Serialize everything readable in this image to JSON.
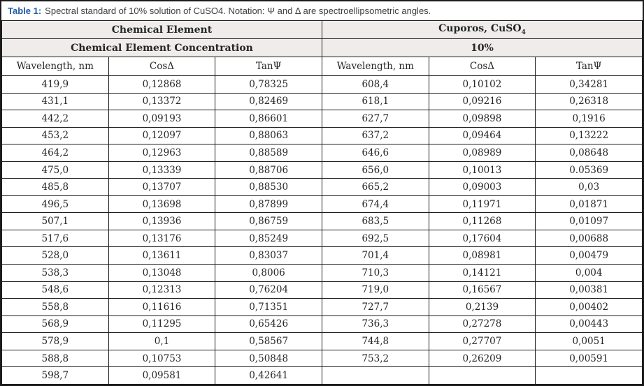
{
  "caption": {
    "label": "Table 1:",
    "text": "Spectral standard of 10% solution of CuSO4. Notation: Ψ and Δ are spectroellipsometric angles."
  },
  "table": {
    "group_left": "Chemical Element",
    "group_right_prefix": "Cuporos, CuSO",
    "group_right_sub": "4",
    "concentration_left": "Chemical Element Concentration",
    "concentration_right": "10%",
    "columns": [
      "Wavelength, nm",
      "CosΔ",
      "TanΨ",
      "Wavelength, nm",
      "CosΔ",
      "TanΨ"
    ],
    "rows": [
      [
        "419,9",
        "0,12868",
        "0,78325",
        "608,4",
        "0,10102",
        "0,34281"
      ],
      [
        "431,1",
        "0,13372",
        "0,82469",
        "618,1",
        "0,09216",
        "0,26318"
      ],
      [
        "442,2",
        "0,09193",
        "0,86601",
        "627,7",
        "0,09898",
        "0,1916"
      ],
      [
        "453,2",
        "0,12097",
        "0,88063",
        "637,2",
        "0,09464",
        "0,13222"
      ],
      [
        "464,2",
        "0,12963",
        "0,88589",
        "646,6",
        "0,08989",
        "0,08648"
      ],
      [
        "475,0",
        "0,13339",
        "0,88706",
        "656,0",
        "0,10013",
        "0.05369"
      ],
      [
        "485,8",
        "0,13707",
        "0,88530",
        "665,2",
        "0,09003",
        "0,03"
      ],
      [
        "496,5",
        "0,13698",
        "0,87899",
        "674,4",
        "0,11971",
        "0,01871"
      ],
      [
        "507,1",
        "0,13936",
        "0,86759",
        "683,5",
        "0,11268",
        "0,01097"
      ],
      [
        "517,6",
        "0,13176",
        "0,85249",
        "692,5",
        "0,17604",
        "0,00688"
      ],
      [
        "528,0",
        "0,13611",
        "0,83037",
        "701,4",
        "0,08981",
        "0,00479"
      ],
      [
        "538,3",
        "0,13048",
        "0,8006",
        "710,3",
        "0,14121",
        "0,004"
      ],
      [
        "548,6",
        "0,12313",
        "0,76204",
        "719,0",
        "0,16567",
        "0,00381"
      ],
      [
        "558,8",
        "0,11616",
        "0,71351",
        "727,7",
        "0,2139",
        "0,00402"
      ],
      [
        "568,9",
        "0,11295",
        "0,65426",
        "736,3",
        "0,27278",
        "0,00443"
      ],
      [
        "578,9",
        "0,1",
        "0,58567",
        "744,8",
        "0,27707",
        "0,0051"
      ],
      [
        "588,8",
        "0,10753",
        "0,50848",
        "753,2",
        "0,26209",
        "0,00591"
      ],
      [
        "598,7",
        "0,09581",
        "0,42641",
        "",
        "",
        ""
      ]
    ]
  },
  "colors": {
    "caption_label": "#1e5aa8",
    "header_bg": "#efeceb",
    "border": "#1c1c1c",
    "text": "#262626"
  }
}
